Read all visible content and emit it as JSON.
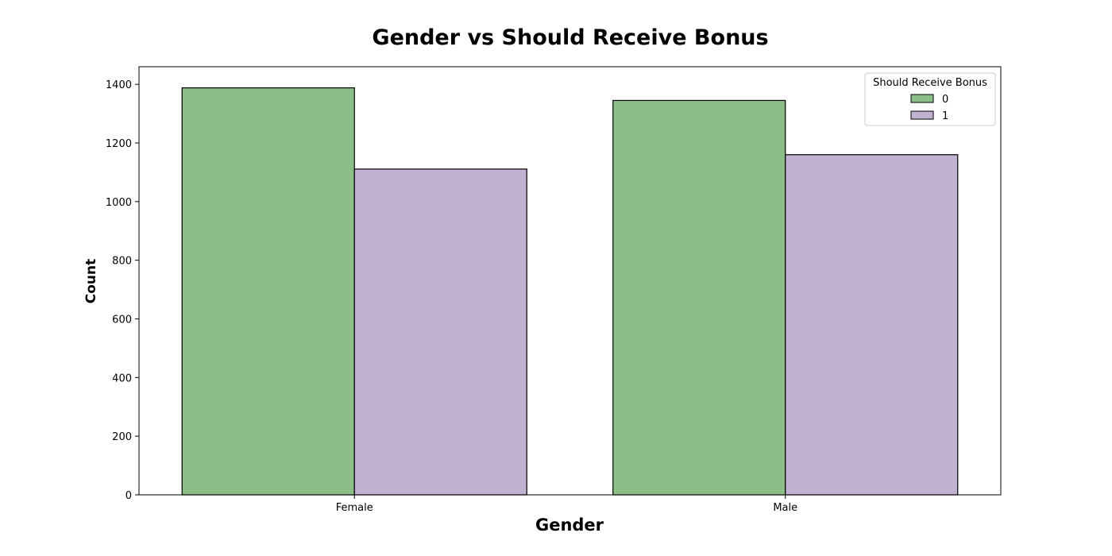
{
  "chart_data": {
    "type": "bar",
    "title": "Gender vs Should Receive Bonus",
    "xlabel": "Gender",
    "ylabel": "Count",
    "categories": [
      "Female",
      "Male"
    ],
    "series": [
      {
        "name": "0",
        "values": [
          1388,
          1345
        ],
        "color": "#8cbf88"
      },
      {
        "name": "1",
        "values": [
          1111,
          1160
        ],
        "color": "#c1b2d1"
      }
    ],
    "ylim": [
      0,
      1460
    ],
    "yticks": [
      0,
      200,
      400,
      600,
      800,
      1000,
      1200,
      1400
    ],
    "legend": {
      "title": "Should Receive Bonus",
      "placement": "top-right"
    },
    "grid": false
  }
}
